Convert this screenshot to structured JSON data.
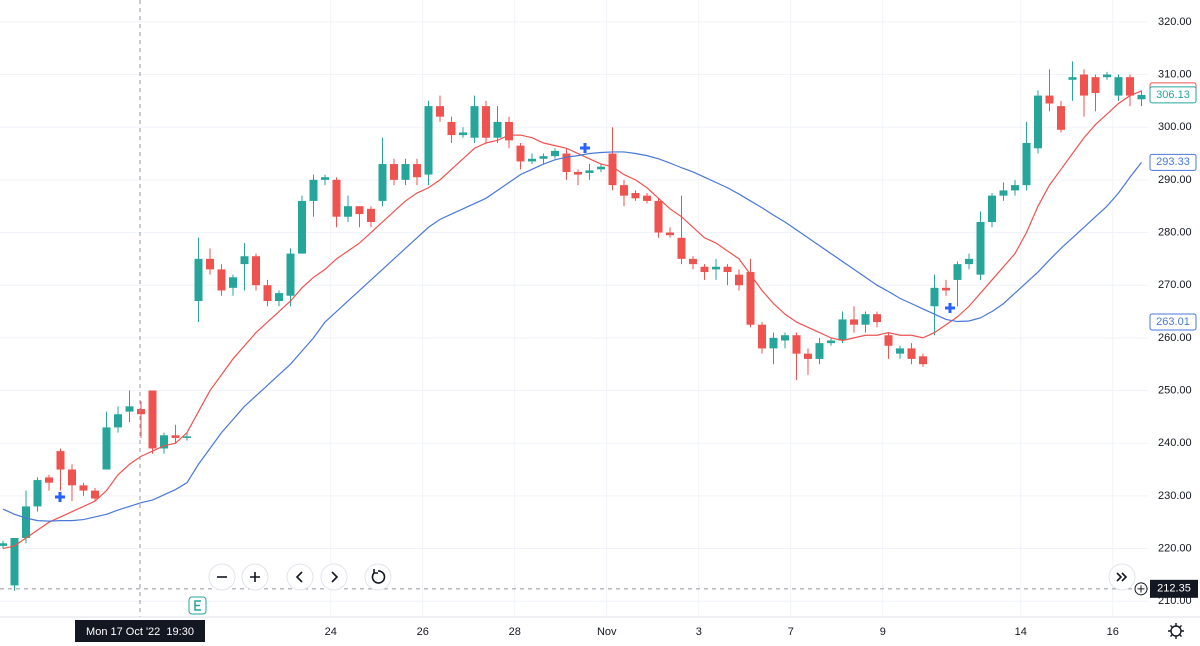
{
  "chart_data": {
    "type": "candlestick",
    "categories": [
      null,
      null,
      null,
      null,
      null,
      null,
      null,
      null,
      null,
      null,
      null,
      null,
      null,
      null,
      null,
      null,
      null,
      null,
      null,
      null,
      null,
      null,
      null,
      null,
      null,
      null,
      null,
      null,
      null,
      "24",
      null,
      null,
      null,
      null,
      null,
      null,
      null,
      "26",
      null,
      null,
      null,
      null,
      null,
      null,
      null,
      "28",
      null,
      null,
      null,
      null,
      null,
      null,
      null,
      "Nov",
      null,
      null,
      null,
      null,
      null,
      null,
      null,
      "3",
      null,
      null,
      null,
      null,
      null,
      null,
      null,
      "7",
      null,
      null,
      null,
      null,
      null,
      null,
      null,
      "9",
      null,
      null,
      null,
      null,
      null,
      null,
      null,
      null,
      null,
      null,
      null,
      "14",
      null,
      null,
      null,
      null,
      null,
      null,
      null,
      "16",
      null,
      null
    ],
    "open": [
      220.5,
      213,
      222,
      228,
      233.5,
      238.5,
      235,
      232,
      231,
      235,
      243,
      246,
      246.5,
      250,
      239,
      241.5,
      241,
      267,
      275,
      273,
      269.5,
      274,
      275.5,
      270,
      267,
      268,
      276,
      286,
      290,
      290,
      283,
      285,
      284.5,
      286,
      293,
      290,
      293,
      291,
      304,
      301,
      298.5,
      298,
      304,
      298,
      301,
      296.5,
      293.5,
      294,
      294.5,
      295,
      291.5,
      291.3,
      292,
      295,
      289,
      287.5,
      287,
      286,
      280,
      279,
      275,
      273.5,
      273,
      273.5,
      272,
      272.5,
      262.5,
      258,
      259.5,
      260.5,
      257,
      256,
      259,
      259.5,
      263.5,
      262.5,
      264.5,
      260.5,
      257,
      258,
      256.5,
      266,
      269.5,
      271,
      274,
      272,
      282,
      287,
      288,
      289,
      296,
      306,
      304,
      309,
      310,
      309.5,
      309.5,
      306,
      309.5,
      305.3
    ],
    "high": [
      221.5,
      222,
      231,
      233.5,
      234,
      239,
      236,
      232.5,
      231.5,
      246,
      247,
      250,
      248,
      250,
      242,
      243.5,
      242,
      279,
      277,
      274,
      272,
      278,
      276,
      271,
      269,
      277,
      287,
      291,
      291,
      290.5,
      287,
      285,
      285,
      298,
      294,
      294,
      294,
      305,
      306,
      302,
      300,
      306,
      305,
      304,
      302,
      297,
      295,
      295,
      296,
      296,
      292,
      293,
      293,
      300,
      290,
      288,
      287.5,
      286.5,
      281,
      287,
      275.5,
      274,
      275,
      274,
      273,
      275,
      263,
      261,
      261,
      261,
      258,
      260,
      260,
      265,
      266,
      265,
      265,
      261,
      258.5,
      259,
      257,
      272,
      271,
      274.5,
      276,
      284,
      287.5,
      289.5,
      290,
      301,
      307,
      311,
      305,
      312.5,
      311,
      310,
      310.5,
      310,
      310,
      307
    ],
    "low": [
      220,
      212,
      221,
      227,
      231,
      231,
      229,
      230,
      229,
      235,
      242,
      244,
      241,
      238,
      238,
      240,
      240.5,
      263,
      272,
      268,
      268,
      269,
      269,
      266,
      266,
      266,
      276,
      283,
      289,
      281,
      282,
      281,
      281,
      285,
      289,
      289,
      289,
      289,
      301,
      297,
      298,
      297,
      297,
      297,
      296,
      292,
      293,
      293,
      294,
      290,
      289,
      290,
      291.5,
      288,
      285,
      286,
      285.5,
      279,
      279,
      274,
      273,
      271,
      271,
      270,
      269,
      262,
      257,
      255,
      258,
      252,
      253,
      255,
      258.5,
      259,
      261,
      261,
      262,
      256,
      256,
      255,
      254.5,
      260.5,
      268,
      266,
      273,
      271,
      281,
      286,
      287,
      288,
      295,
      303,
      299,
      305,
      302,
      303,
      309,
      305,
      304,
      304
    ],
    "close": [
      221,
      222,
      228,
      233,
      232.5,
      235,
      232,
      231,
      229.5,
      243,
      245.5,
      247,
      245.5,
      239,
      241.5,
      241,
      241.3,
      275,
      273,
      269,
      271.5,
      275.5,
      270,
      267,
      268.5,
      276,
      286,
      290,
      290.5,
      283,
      285,
      283.5,
      282,
      293,
      290,
      293,
      290.5,
      304,
      302,
      298.5,
      299,
      304,
      298,
      301,
      297.5,
      293.5,
      294,
      294.5,
      295.5,
      291.5,
      291,
      291.8,
      292.5,
      289,
      287,
      286.5,
      286,
      280,
      279.5,
      275,
      274,
      272.5,
      273.5,
      272.5,
      270,
      262.5,
      258,
      260,
      260.5,
      257,
      256,
      259,
      259.5,
      263.5,
      262.5,
      264.5,
      263,
      258.5,
      258,
      256,
      255,
      269.5,
      269,
      274,
      275,
      282,
      287,
      288,
      289,
      297,
      306,
      304.5,
      299.5,
      309.5,
      306,
      306.5,
      310,
      309.5,
      306,
      306.13
    ],
    "up_color": "#26a69a",
    "down_color": "#ef5350",
    "series": [
      {
        "color": "#ef5350",
        "values": [
          220,
          220.5,
          222,
          223.5,
          225,
          226,
          227,
          228,
          229,
          231,
          234,
          236,
          237.5,
          238.5,
          239.5,
          240,
          242,
          246,
          250,
          253,
          256,
          258.5,
          261,
          263,
          265,
          267,
          269.5,
          271.5,
          273,
          275,
          276.5,
          278,
          280,
          282,
          284,
          286,
          287.5,
          288.5,
          290,
          292,
          294,
          296,
          297,
          297.5,
          298.5,
          298.5,
          298,
          297,
          296.5,
          296,
          295,
          294,
          293,
          292.5,
          291,
          290,
          288.5,
          286.5,
          284.5,
          283,
          281,
          279,
          278,
          276.5,
          275,
          272,
          269,
          266.5,
          264.5,
          263,
          262,
          261,
          260,
          259.5,
          260,
          260.5,
          260.5,
          261,
          260.5,
          260.5,
          260,
          261,
          262.5,
          264,
          266,
          268.5,
          271,
          273.5,
          276,
          280,
          285,
          289,
          292,
          295,
          298,
          300.5,
          302.5,
          304.5,
          306,
          306.89
        ]
      },
      {
        "color": "#4a78d8",
        "values": [
          227.5,
          226.5,
          225.8,
          225.3,
          225.2,
          225.3,
          225.3,
          225.5,
          226,
          226.5,
          227.3,
          228,
          228.7,
          229.2,
          230.2,
          231.2,
          232.5,
          236,
          239,
          242,
          244.5,
          247,
          249,
          251,
          253,
          255,
          257.5,
          260,
          263,
          265,
          267,
          269,
          271,
          273,
          275,
          277,
          279,
          281,
          282.5,
          283.5,
          284.5,
          285.5,
          286.5,
          288,
          289.5,
          291,
          292,
          293,
          293.8,
          294.3,
          294.6,
          295,
          295.2,
          295.3,
          295.3,
          295,
          294.6,
          294,
          293.2,
          292.3,
          291.5,
          290.5,
          289.5,
          288.5,
          287.3,
          286,
          284.7,
          283.3,
          282,
          280.5,
          279,
          277.5,
          276,
          274.5,
          273,
          271.5,
          270,
          268.8,
          267.5,
          266.5,
          265.5,
          264.5,
          263.5,
          263.1,
          263.2,
          263.8,
          265,
          266.5,
          268.5,
          270.5,
          272.5,
          274.8,
          277,
          279,
          281,
          283,
          285,
          287.5,
          290.5,
          293.33
        ]
      }
    ],
    "marker_price": 263.01,
    "crosshair_price": 212.35,
    "crosshair_time": "Mon 17 Oct '22  19:30",
    "ylim": [
      207,
      324.15
    ],
    "yticks": [
      {
        "value": 210,
        "label": "210.00"
      },
      {
        "value": 220,
        "label": "220.00"
      },
      {
        "value": 230,
        "label": "230.00"
      },
      {
        "value": 240,
        "label": "240.00"
      },
      {
        "value": 250,
        "label": "250.00"
      },
      {
        "value": 260,
        "label": "260.00"
      },
      {
        "value": 270,
        "label": "270.00"
      },
      {
        "value": 280,
        "label": "280.00"
      },
      {
        "value": 290,
        "label": "290.00"
      },
      {
        "value": 300,
        "label": "300.00"
      },
      {
        "value": 310,
        "label": "310.00"
      },
      {
        "value": 320,
        "label": "320.00"
      }
    ],
    "grid": true
  }
}
